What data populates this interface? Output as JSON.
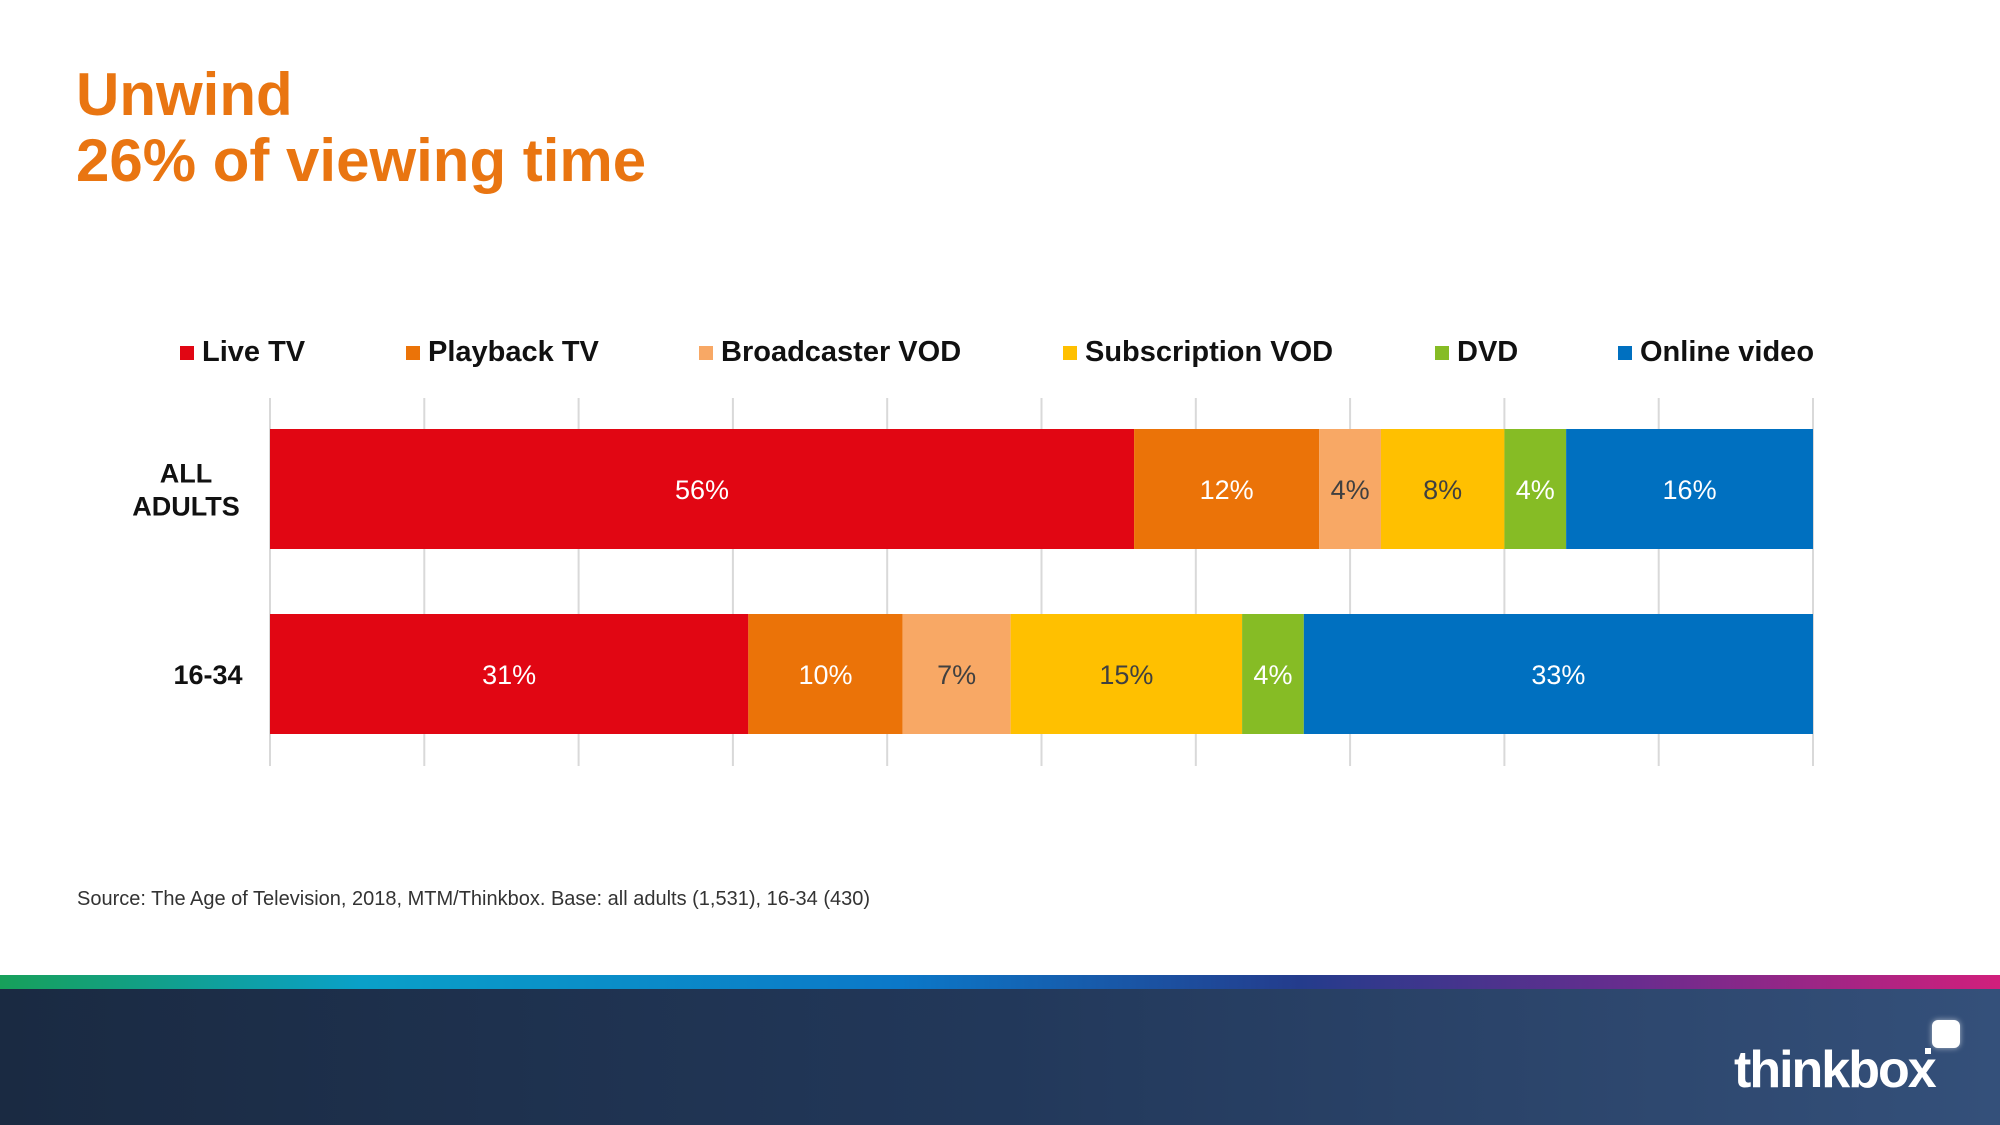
{
  "title": {
    "line1": "Unwind",
    "line2": "26% of viewing time"
  },
  "chart_data": {
    "type": "bar",
    "orientation": "horizontal",
    "stacked": true,
    "categories": [
      "ALL ADULTS",
      "16-34"
    ],
    "series": [
      {
        "name": "Live TV",
        "color": "#E10613",
        "values": [
          56,
          31
        ]
      },
      {
        "name": "Playback TV",
        "color": "#EB7308",
        "values": [
          12,
          10
        ]
      },
      {
        "name": "Broadcaster VOD",
        "color": "#F8A865",
        "values": [
          4,
          7
        ]
      },
      {
        "name": "Subscription VOD",
        "color": "#FFC000",
        "values": [
          8,
          15
        ]
      },
      {
        "name": "DVD",
        "color": "#86BC25",
        "values": [
          4,
          4
        ]
      },
      {
        "name": "Online video",
        "color": "#0070C0",
        "values": [
          16,
          33
        ]
      }
    ],
    "data_labels": [
      [
        "56%",
        "12%",
        "4%",
        "8%",
        "4%",
        "16%"
      ],
      [
        "31%",
        "10%",
        "7%",
        "15%",
        "4%",
        "33%"
      ]
    ],
    "label_colors": [
      "#ffffff",
      "#ffffff",
      "#404040",
      "#404040",
      "#ffffff",
      "#ffffff"
    ],
    "xlim": [
      0,
      100
    ],
    "grid": true,
    "legend_position": "top"
  },
  "source": "Source: The Age of Television, 2018, MTM/Thinkbox.  Base: all adults (1,531), 16-34 (430)",
  "footer": {
    "logo_text": "thinkbox"
  }
}
